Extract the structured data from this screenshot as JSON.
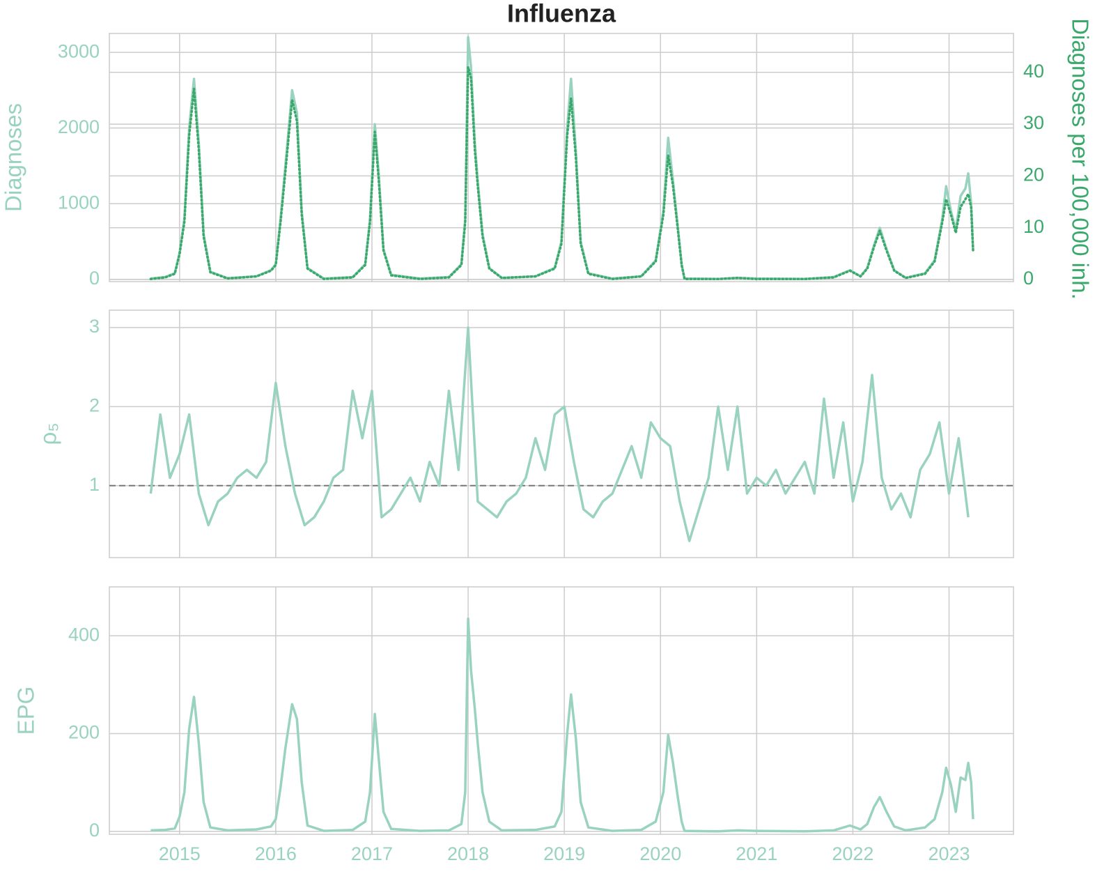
{
  "chart_data": [
    {
      "type": "line",
      "title": "Influenza",
      "ylabel": "Diagnoses",
      "y2label": "Diagnoses per 100,000 inh.",
      "ylim": [
        -30,
        3250
      ],
      "yticks": [
        0,
        1000,
        2000,
        3000
      ],
      "y2lim": [
        -0.4,
        47.5
      ],
      "y2ticks": [
        0,
        10,
        20,
        30,
        40
      ],
      "grid": true,
      "x": [
        2014.7,
        2014.85,
        2014.95,
        2015.0,
        2015.05,
        2015.1,
        2015.15,
        2015.2,
        2015.25,
        2015.32,
        2015.5,
        2015.8,
        2015.95,
        2016.0,
        2016.05,
        2016.1,
        2016.17,
        2016.22,
        2016.27,
        2016.33,
        2016.5,
        2016.8,
        2016.93,
        2016.98,
        2017.03,
        2017.07,
        2017.12,
        2017.2,
        2017.5,
        2017.8,
        2017.93,
        2017.97,
        2018.0,
        2018.03,
        2018.07,
        2018.1,
        2018.15,
        2018.22,
        2018.35,
        2018.7,
        2018.9,
        2018.97,
        2019.03,
        2019.07,
        2019.12,
        2019.17,
        2019.25,
        2019.5,
        2019.8,
        2019.95,
        2020.03,
        2020.08,
        2020.13,
        2020.18,
        2020.22,
        2020.25,
        2020.6,
        2020.8,
        2021.0,
        2021.5,
        2021.8,
        2021.97,
        2022.08,
        2022.15,
        2022.22,
        2022.28,
        2022.35,
        2022.43,
        2022.55,
        2022.75,
        2022.85,
        2022.93,
        2022.97,
        2023.02,
        2023.07,
        2023.12,
        2023.17,
        2023.2,
        2023.23,
        2023.25
      ],
      "series": [
        {
          "color": "#99d3bf",
          "values": [
            10,
            30,
            80,
            350,
            800,
            2000,
            2650,
            1800,
            600,
            100,
            15,
            40,
            120,
            200,
            800,
            1500,
            2500,
            2200,
            900,
            150,
            10,
            30,
            200,
            800,
            2050,
            1400,
            400,
            60,
            10,
            30,
            200,
            800,
            3200,
            2800,
            1800,
            1300,
            600,
            150,
            20,
            40,
            150,
            500,
            2000,
            2650,
            1700,
            500,
            80,
            10,
            40,
            250,
            900,
            1870,
            1300,
            700,
            200,
            10,
            5,
            20,
            10,
            5,
            30,
            120,
            40,
            150,
            450,
            680,
            400,
            120,
            20,
            80,
            250,
            800,
            1230,
            900,
            650,
            1100,
            1200,
            1400,
            1000,
            400
          ]
        },
        {
          "color": "#3aa86b",
          "axis": "y2",
          "style": "dotted",
          "values": [
            0.1,
            0.4,
            1.1,
            4.9,
            11.1,
            27.8,
            36.8,
            25,
            8.3,
            1.4,
            0.2,
            0.6,
            1.7,
            2.8,
            11.1,
            20.8,
            34.7,
            30.6,
            12.5,
            2.1,
            0.1,
            0.4,
            2.8,
            11.1,
            28.5,
            19.4,
            5.6,
            0.8,
            0.1,
            0.4,
            2.8,
            11.1,
            41,
            38.9,
            25,
            18.1,
            8.3,
            2.1,
            0.3,
            0.6,
            2.1,
            6.9,
            27.8,
            35,
            23.6,
            6.9,
            1.1,
            0.1,
            0.6,
            3.5,
            12.5,
            24,
            18.1,
            9.7,
            2.8,
            0.1,
            0.1,
            0.3,
            0.1,
            0.1,
            0.4,
            1.7,
            0.6,
            2.1,
            6.3,
            9.4,
            5.6,
            1.7,
            0.3,
            1.1,
            3.5,
            11.1,
            15.5,
            12.5,
            9,
            14,
            15.5,
            16.5,
            13.9,
            5.6
          ]
        }
      ]
    },
    {
      "type": "line",
      "ylabel": "ρ₅",
      "ylim": [
        0.09,
        3.22
      ],
      "yticks": [
        1,
        2,
        3
      ],
      "grid": true,
      "hline": 1,
      "x": [
        2014.7,
        2014.8,
        2014.9,
        2015.0,
        2015.1,
        2015.2,
        2015.3,
        2015.4,
        2015.5,
        2015.6,
        2015.7,
        2015.8,
        2015.9,
        2016.0,
        2016.1,
        2016.2,
        2016.3,
        2016.4,
        2016.5,
        2016.6,
        2016.7,
        2016.8,
        2016.9,
        2017.0,
        2017.1,
        2017.2,
        2017.3,
        2017.4,
        2017.5,
        2017.6,
        2017.7,
        2017.8,
        2017.9,
        2018.0,
        2018.1,
        2018.2,
        2018.3,
        2018.4,
        2018.5,
        2018.6,
        2018.7,
        2018.8,
        2018.9,
        2019.0,
        2019.1,
        2019.2,
        2019.3,
        2019.4,
        2019.5,
        2019.6,
        2019.7,
        2019.8,
        2019.9,
        2020.0,
        2020.1,
        2020.2,
        2020.3,
        2020.4,
        2020.5,
        2020.6,
        2020.7,
        2020.8,
        2020.9,
        2021.0,
        2021.1,
        2021.2,
        2021.3,
        2021.4,
        2021.5,
        2021.6,
        2021.7,
        2021.8,
        2021.9,
        2022.0,
        2022.1,
        2022.2,
        2022.3,
        2022.4,
        2022.5,
        2022.6,
        2022.7,
        2022.8,
        2022.9,
        2023.0,
        2023.1,
        2023.2
      ],
      "series": [
        {
          "color": "#99d3bf",
          "values": [
            0.9,
            1.9,
            1.1,
            1.4,
            1.9,
            0.9,
            0.5,
            0.8,
            0.9,
            1.1,
            1.2,
            1.1,
            1.3,
            2.3,
            1.5,
            0.9,
            0.5,
            0.6,
            0.8,
            1.1,
            1.2,
            2.2,
            1.6,
            2.2,
            0.6,
            0.7,
            0.9,
            1.1,
            0.8,
            1.3,
            1.0,
            2.2,
            1.2,
            3.0,
            0.8,
            0.7,
            0.6,
            0.8,
            0.9,
            1.1,
            1.6,
            1.2,
            1.9,
            2.0,
            1.3,
            0.7,
            0.6,
            0.8,
            0.9,
            1.2,
            1.5,
            1.1,
            1.8,
            1.6,
            1.5,
            0.8,
            0.3,
            0.7,
            1.1,
            2.0,
            1.2,
            2.0,
            0.9,
            1.1,
            1.0,
            1.2,
            0.9,
            1.1,
            1.3,
            0.9,
            2.1,
            1.1,
            1.8,
            0.8,
            1.3,
            2.4,
            1.1,
            0.7,
            0.9,
            0.6,
            1.2,
            1.4,
            1.8,
            0.9,
            1.6,
            0.6
          ]
        }
      ]
    },
    {
      "type": "line",
      "ylabel": "EPG",
      "ylim": [
        -6,
        500
      ],
      "yticks": [
        0,
        200,
        400
      ],
      "grid": true,
      "xlim": [
        2014.27,
        2023.67
      ],
      "xticks": [
        2015,
        2016,
        2017,
        2018,
        2019,
        2020,
        2021,
        2022,
        2023
      ],
      "x": [
        2014.7,
        2014.85,
        2014.95,
        2015.0,
        2015.05,
        2015.1,
        2015.15,
        2015.2,
        2015.25,
        2015.32,
        2015.5,
        2015.8,
        2015.95,
        2016.0,
        2016.05,
        2016.1,
        2016.17,
        2016.22,
        2016.27,
        2016.33,
        2016.5,
        2016.8,
        2016.93,
        2016.98,
        2017.03,
        2017.07,
        2017.12,
        2017.2,
        2017.5,
        2017.8,
        2017.93,
        2017.97,
        2018.0,
        2018.03,
        2018.07,
        2018.1,
        2018.15,
        2018.22,
        2018.35,
        2018.7,
        2018.9,
        2018.97,
        2019.03,
        2019.07,
        2019.12,
        2019.17,
        2019.25,
        2019.5,
        2019.8,
        2019.95,
        2020.03,
        2020.08,
        2020.13,
        2020.18,
        2020.22,
        2020.25,
        2020.6,
        2020.8,
        2021.0,
        2021.5,
        2021.8,
        2021.97,
        2022.08,
        2022.15,
        2022.22,
        2022.28,
        2022.35,
        2022.43,
        2022.55,
        2022.75,
        2022.85,
        2022.93,
        2022.97,
        2023.02,
        2023.07,
        2023.12,
        2023.17,
        2023.2,
        2023.23,
        2023.25
      ],
      "series": [
        {
          "color": "#99d3bf",
          "values": [
            2,
            3,
            6,
            30,
            80,
            210,
            275,
            180,
            60,
            8,
            2,
            4,
            10,
            25,
            90,
            170,
            260,
            230,
            100,
            12,
            1,
            3,
            20,
            80,
            240,
            150,
            40,
            5,
            1,
            2,
            15,
            80,
            435,
            330,
            250,
            180,
            80,
            20,
            2,
            3,
            10,
            40,
            200,
            280,
            190,
            60,
            8,
            1,
            3,
            20,
            80,
            197,
            140,
            70,
            20,
            1,
            0,
            2,
            1,
            0,
            2,
            12,
            4,
            15,
            50,
            70,
            40,
            10,
            2,
            8,
            25,
            80,
            130,
            95,
            40,
            110,
            105,
            140,
            100,
            25
          ]
        }
      ]
    }
  ]
}
